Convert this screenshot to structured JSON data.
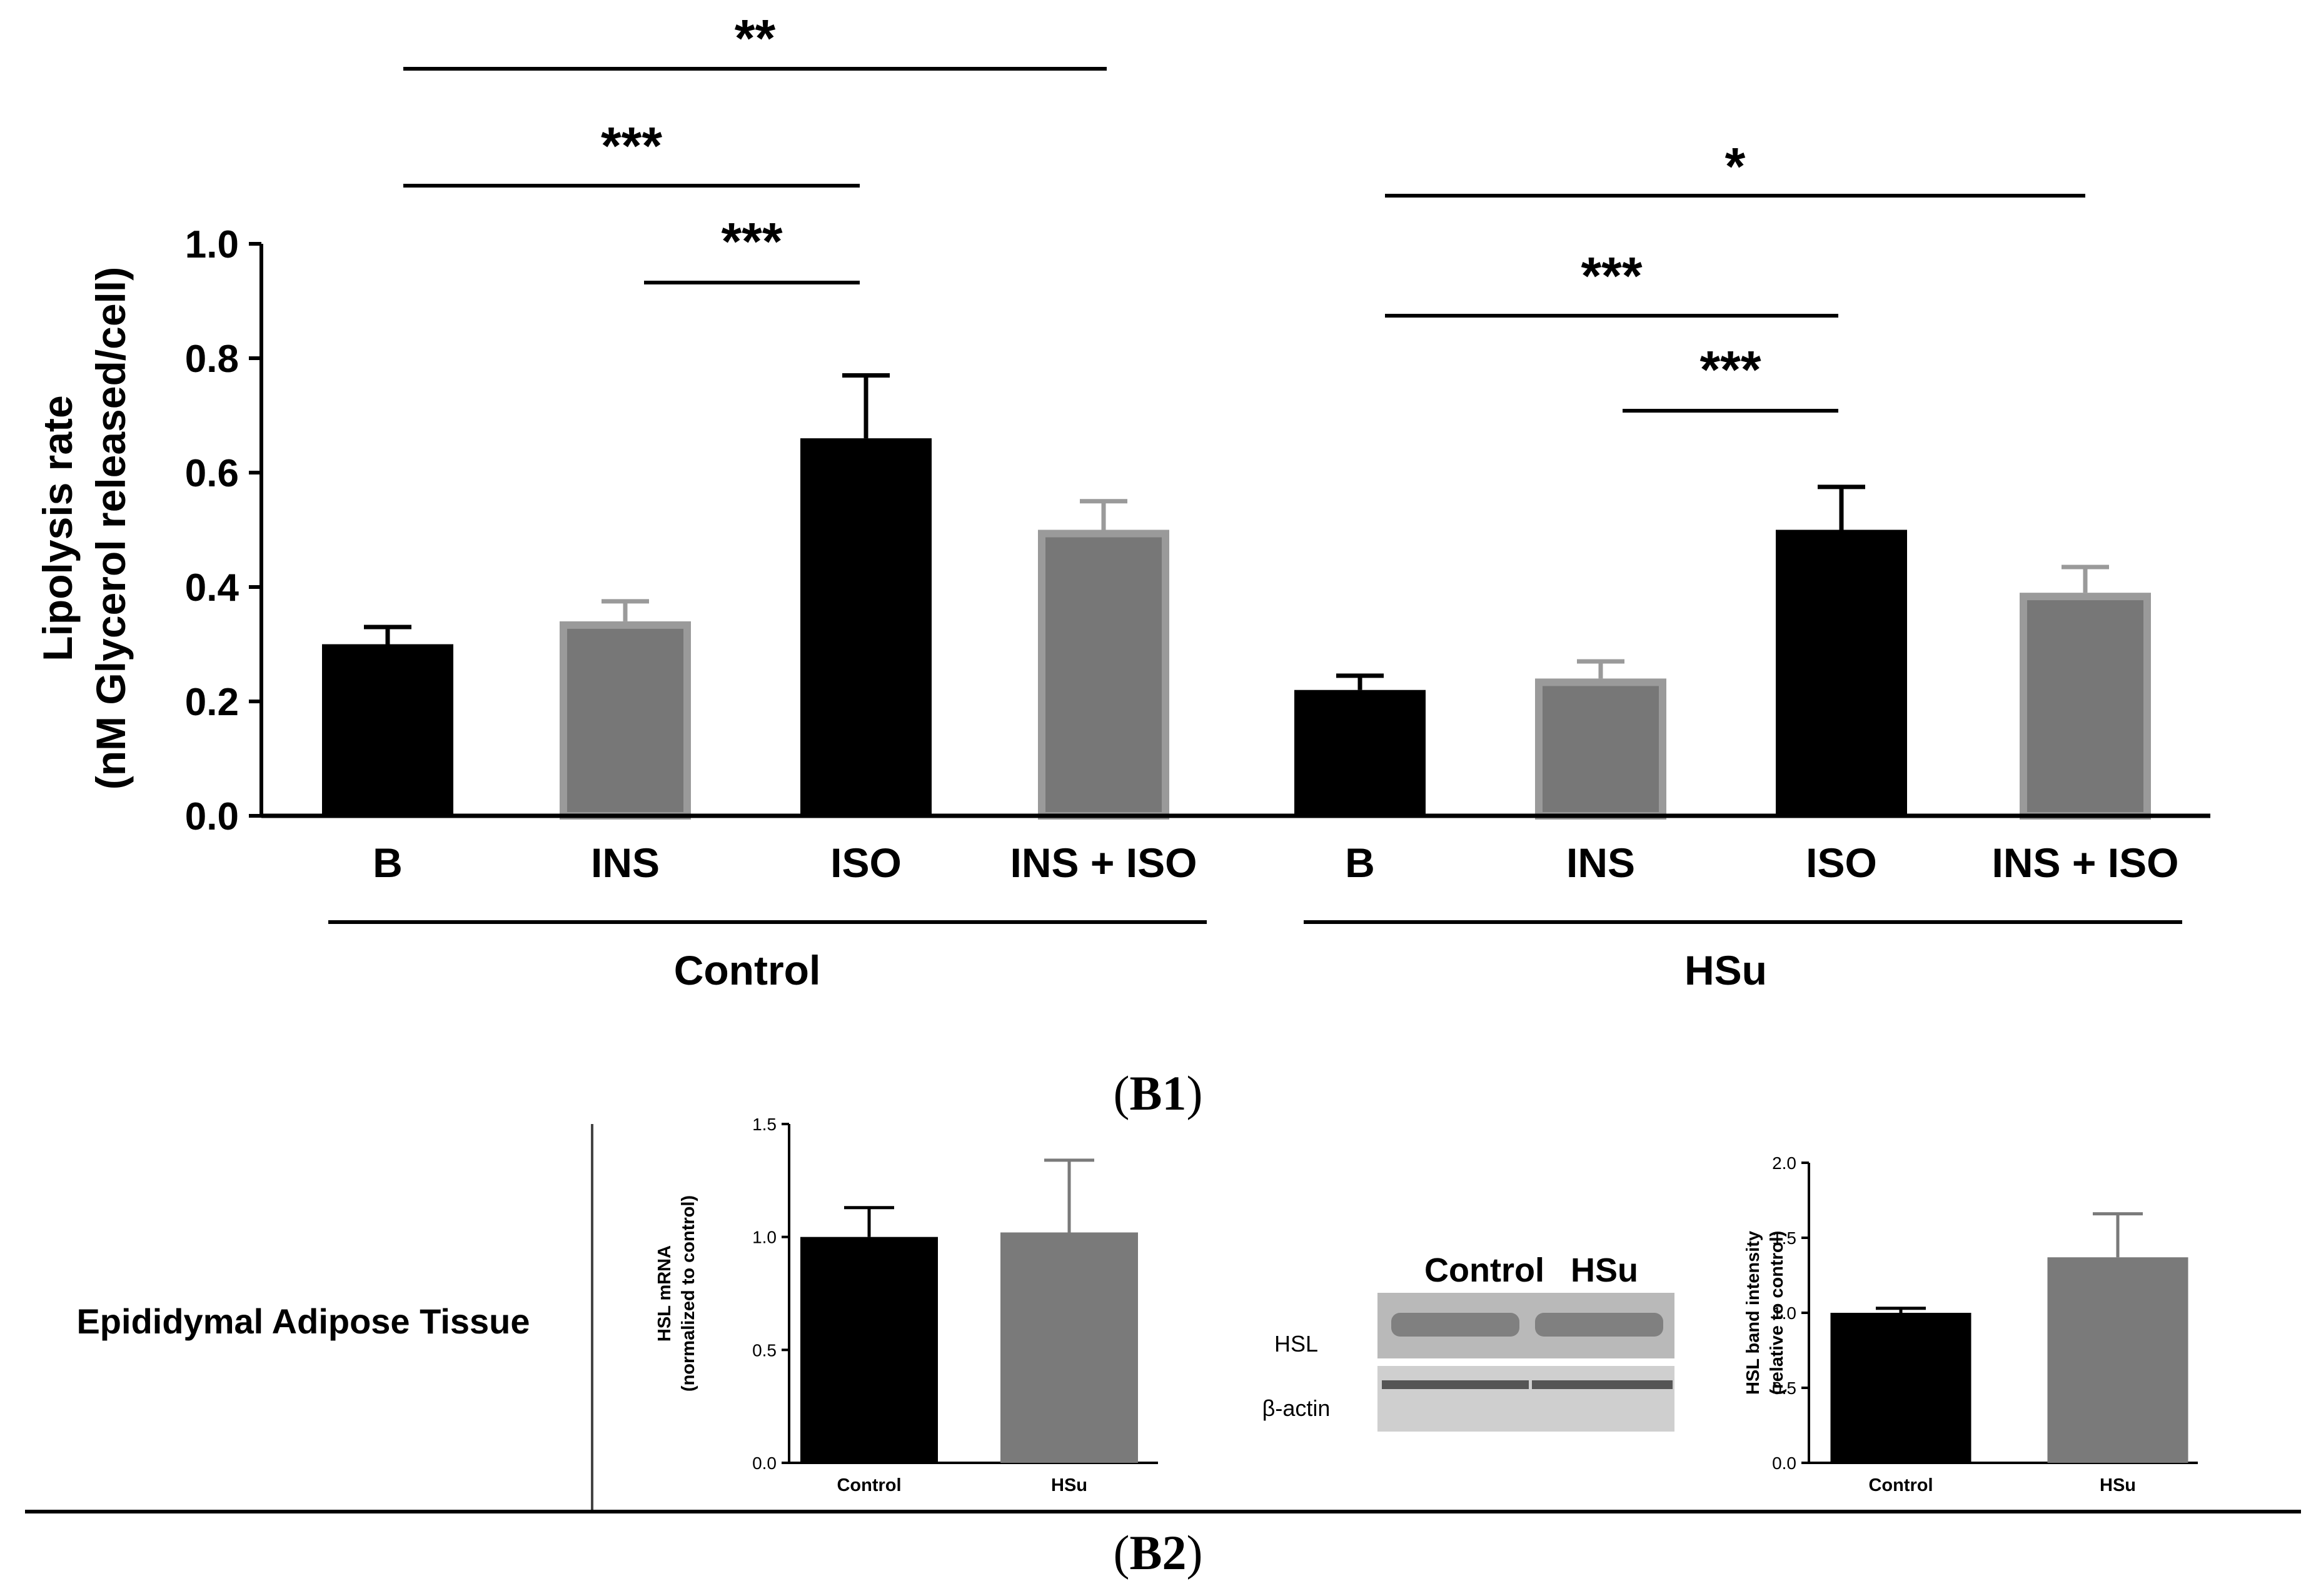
{
  "chart_data": [
    {
      "id": "B1",
      "type": "bar",
      "ylabel_line1": "Lipolysis rate",
      "ylabel_line2": "(nM Glycerol released/cell)",
      "ylim": [
        0,
        1.0
      ],
      "yticks": [
        "0.0",
        "0.2",
        "0.4",
        "0.6",
        "0.8",
        "1.0"
      ],
      "groups": [
        "Control",
        "HSu"
      ],
      "categories": [
        "B",
        "INS",
        "ISO",
        "INS + ISO",
        "B",
        "INS",
        "ISO",
        "INS + ISO"
      ],
      "values": [
        0.3,
        0.34,
        0.66,
        0.5,
        0.22,
        0.24,
        0.5,
        0.39
      ],
      "errors": [
        0.03,
        0.035,
        0.11,
        0.05,
        0.025,
        0.03,
        0.075,
        0.045
      ],
      "colors": [
        "#000000",
        "#7a7a7a",
        "#000000",
        "#7a7a7a",
        "#000000",
        "#7a7a7a",
        "#000000",
        "#7a7a7a"
      ],
      "significance": [
        {
          "from": 0,
          "to": 3,
          "label": "**"
        },
        {
          "from": 0,
          "to": 2,
          "label": "***"
        },
        {
          "from": 1,
          "to": 2,
          "label": "***"
        },
        {
          "from": 4,
          "to": 7,
          "label": "*"
        },
        {
          "from": 4,
          "to": 6,
          "label": "***"
        },
        {
          "from": 5,
          "to": 6,
          "label": "***"
        }
      ],
      "panel_label": "B1"
    },
    {
      "id": "mrna",
      "type": "bar",
      "ylabel_line1": "HSL mRNA",
      "ylabel_line2": "(normalized to control)",
      "ylim": [
        0,
        1.5
      ],
      "yticks": [
        "0.0",
        "0.5",
        "1.0",
        "1.5"
      ],
      "categories": [
        "Control",
        "HSu"
      ],
      "values": [
        1.0,
        1.02
      ],
      "errors": [
        0.13,
        0.32
      ],
      "colors": [
        "#000000",
        "#7a7a7a"
      ]
    },
    {
      "id": "band",
      "type": "bar",
      "ylabel_line1": "HSL band intensity",
      "ylabel_line2": "(relative to control)",
      "ylim": [
        0,
        2.0
      ],
      "yticks": [
        "0.0",
        "0.5",
        "1.0",
        "1.5",
        "2.0"
      ],
      "categories": [
        "Control",
        "HSu"
      ],
      "values": [
        1.0,
        1.37
      ],
      "errors": [
        0.03,
        0.29
      ],
      "colors": [
        "#000000",
        "#7a7a7a"
      ]
    }
  ],
  "b2": {
    "tissue_label": "Epididymal Adipose Tissue",
    "blot": {
      "lane_labels": [
        "Control",
        "HSu"
      ],
      "row_labels": [
        "HSL",
        "β-actin"
      ]
    },
    "panel_label": "B2"
  }
}
